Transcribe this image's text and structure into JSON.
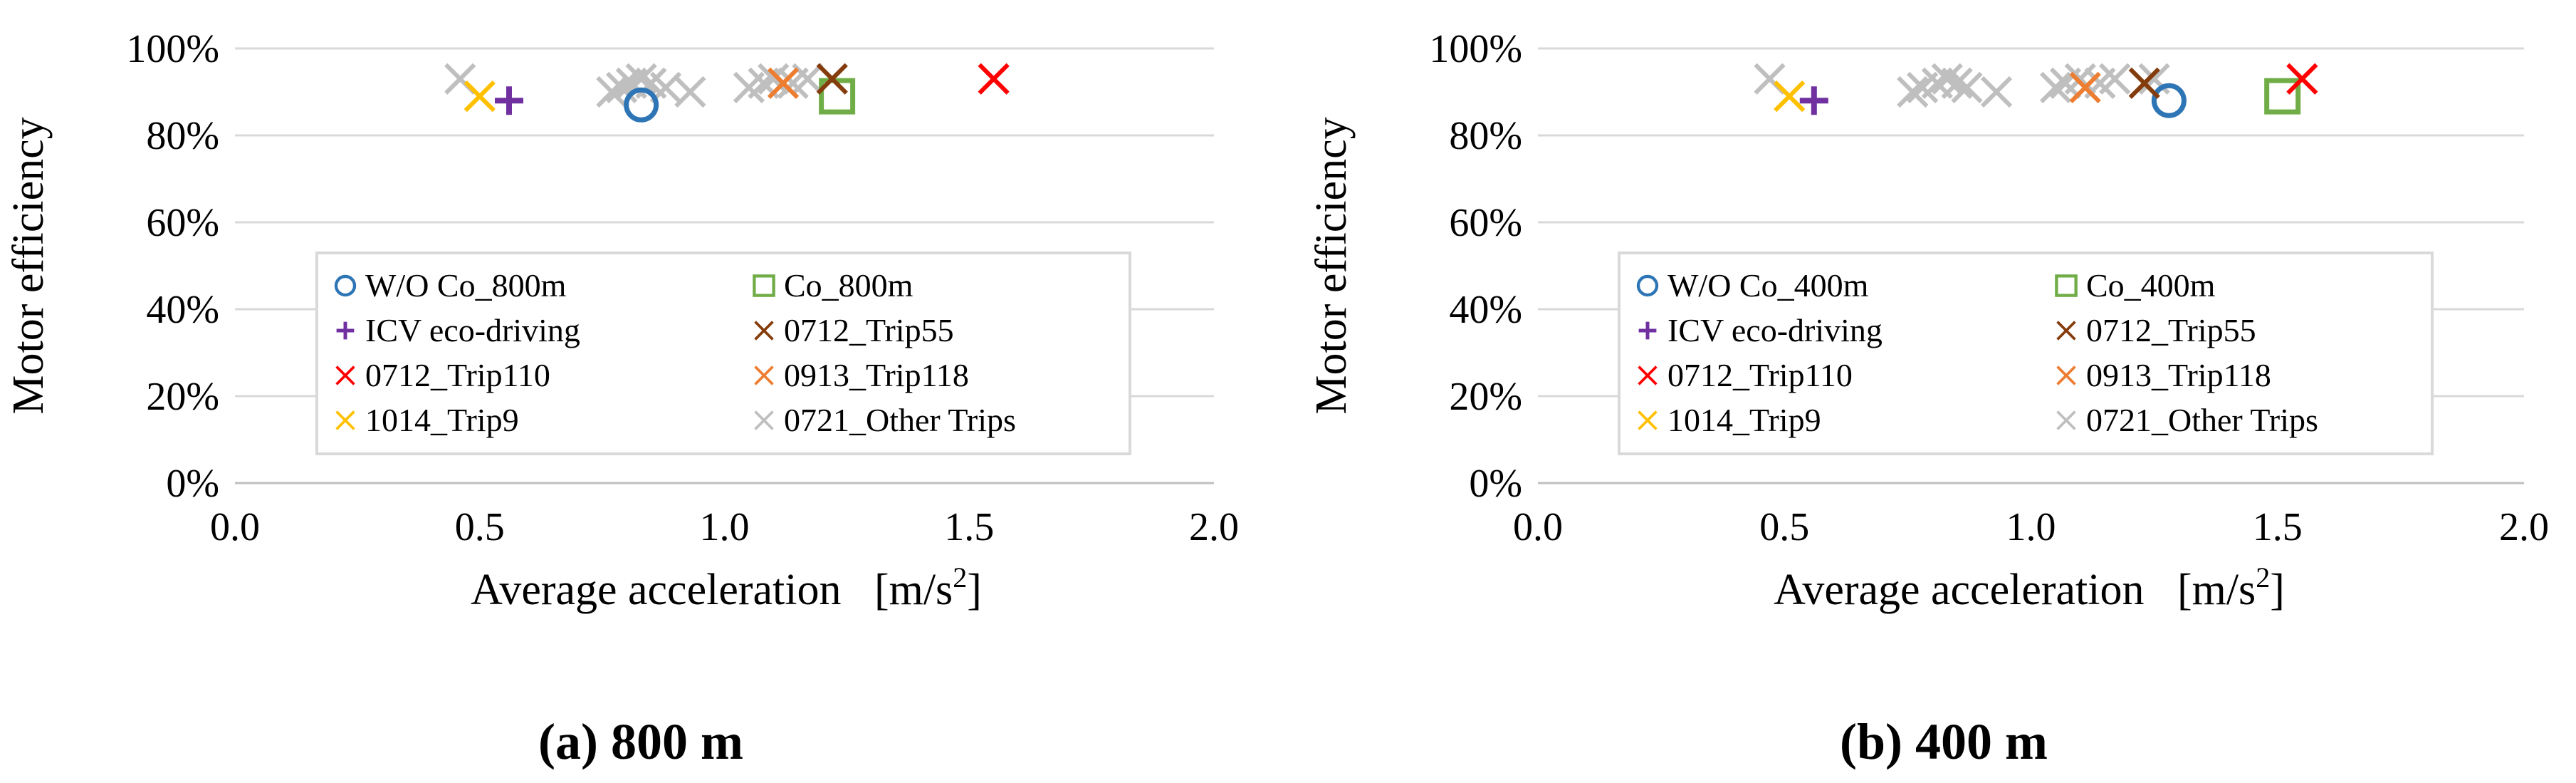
{
  "colors": {
    "wo_co": "#2E75B6",
    "co": "#70AD47",
    "icv": "#7030A0",
    "trip55": "#843C0C",
    "trip110": "#FF0000",
    "trip118": "#ED7D31",
    "trip9": "#FFC000",
    "other": "#BFBFBF",
    "grid": "#D9D9D9",
    "axis": "#BFBFBF"
  },
  "chart_data": [
    {
      "type": "scatter",
      "caption": "(a) 800 m",
      "xlabel": "Average acceleration",
      "xunit_base": "[m/s",
      "xunit_sup": "2",
      "xunit_end": "]",
      "ylabel": "Motor efficiency",
      "xlim": [
        0,
        2
      ],
      "ylim": [
        0,
        1
      ],
      "xticks": [
        0,
        0.5,
        1,
        1.5,
        2
      ],
      "xtick_labels": [
        "0.0",
        "0.5",
        "1.0",
        "1.5",
        "2.0"
      ],
      "yticks": [
        0,
        0.2,
        0.4,
        0.6,
        0.8,
        1
      ],
      "ytick_labels": [
        "0%",
        "20%",
        "40%",
        "60%",
        "80%",
        "100%"
      ],
      "grid": "horizontal",
      "legend_placement": "center",
      "series": [
        {
          "name": "W/O Co_800m",
          "marker": "circle",
          "color_key": "wo_co",
          "points": [
            [
              0.83,
              0.87
            ]
          ]
        },
        {
          "name": "Co_800m",
          "marker": "square",
          "color_key": "co",
          "points": [
            [
              1.23,
              0.89
            ]
          ]
        },
        {
          "name": "ICV eco-driving",
          "marker": "plus",
          "color_key": "icv",
          "points": [
            [
              0.56,
              0.88
            ]
          ]
        },
        {
          "name": "0712_Trip55",
          "marker": "x",
          "color_key": "trip55",
          "points": [
            [
              1.22,
              0.93
            ]
          ]
        },
        {
          "name": "0712_Trip110",
          "marker": "x",
          "color_key": "trip110",
          "points": [
            [
              1.55,
              0.93
            ]
          ]
        },
        {
          "name": "0913_Trip118",
          "marker": "x",
          "color_key": "trip118",
          "points": [
            [
              1.12,
              0.92
            ]
          ]
        },
        {
          "name": "1014_Trip9",
          "marker": "x",
          "color_key": "trip9",
          "points": [
            [
              0.5,
              0.89
            ]
          ]
        },
        {
          "name": "0721_Other Trips",
          "marker": "x",
          "color_key": "other",
          "points": [
            [
              0.46,
              0.93
            ],
            [
              0.77,
              0.9
            ],
            [
              0.79,
              0.91
            ],
            [
              0.81,
              0.92
            ],
            [
              0.83,
              0.93
            ],
            [
              0.85,
              0.92
            ],
            [
              0.88,
              0.91
            ],
            [
              0.93,
              0.9
            ],
            [
              1.05,
              0.91
            ],
            [
              1.08,
              0.92
            ],
            [
              1.1,
              0.93
            ],
            [
              1.14,
              0.92
            ],
            [
              1.17,
              0.93
            ]
          ]
        }
      ]
    },
    {
      "type": "scatter",
      "caption": "(b) 400 m",
      "xlabel": "Average acceleration",
      "xunit_base": "[m/s",
      "xunit_sup": "2",
      "xunit_end": "]",
      "ylabel": "Motor efficiency",
      "xlim": [
        0,
        2
      ],
      "ylim": [
        0,
        1
      ],
      "xticks": [
        0,
        0.5,
        1,
        1.5,
        2
      ],
      "xtick_labels": [
        "0.0",
        "0.5",
        "1.0",
        "1.5",
        "2.0"
      ],
      "yticks": [
        0,
        0.2,
        0.4,
        0.6,
        0.8,
        1
      ],
      "ytick_labels": [
        "0%",
        "20%",
        "40%",
        "60%",
        "80%",
        "100%"
      ],
      "grid": "horizontal",
      "legend_placement": "center",
      "series": [
        {
          "name": "W/O Co_400m",
          "marker": "circle",
          "color_key": "wo_co",
          "points": [
            [
              1.28,
              0.88
            ]
          ]
        },
        {
          "name": "Co_400m",
          "marker": "square",
          "color_key": "co",
          "points": [
            [
              1.51,
              0.89
            ]
          ]
        },
        {
          "name": "ICV eco-driving",
          "marker": "plus",
          "color_key": "icv",
          "points": [
            [
              0.56,
              0.88
            ]
          ]
        },
        {
          "name": "0712_Trip55",
          "marker": "x",
          "color_key": "trip55",
          "points": [
            [
              1.23,
              0.92
            ]
          ]
        },
        {
          "name": "0712_Trip110",
          "marker": "x",
          "color_key": "trip110",
          "points": [
            [
              1.55,
              0.93
            ]
          ]
        },
        {
          "name": "0913_Trip118",
          "marker": "x",
          "color_key": "trip118",
          "points": [
            [
              1.11,
              0.91
            ]
          ]
        },
        {
          "name": "1014_Trip9",
          "marker": "x",
          "color_key": "trip9",
          "points": [
            [
              0.51,
              0.89
            ]
          ]
        },
        {
          "name": "0721_Other Trips",
          "marker": "x",
          "color_key": "other",
          "points": [
            [
              0.47,
              0.93
            ],
            [
              0.76,
              0.9
            ],
            [
              0.78,
              0.91
            ],
            [
              0.81,
              0.92
            ],
            [
              0.83,
              0.93
            ],
            [
              0.85,
              0.92
            ],
            [
              0.87,
              0.91
            ],
            [
              0.93,
              0.9
            ],
            [
              1.05,
              0.91
            ],
            [
              1.07,
              0.92
            ],
            [
              1.1,
              0.93
            ],
            [
              1.14,
              0.92
            ],
            [
              1.17,
              0.93
            ],
            [
              1.25,
              0.93
            ]
          ]
        }
      ]
    }
  ]
}
